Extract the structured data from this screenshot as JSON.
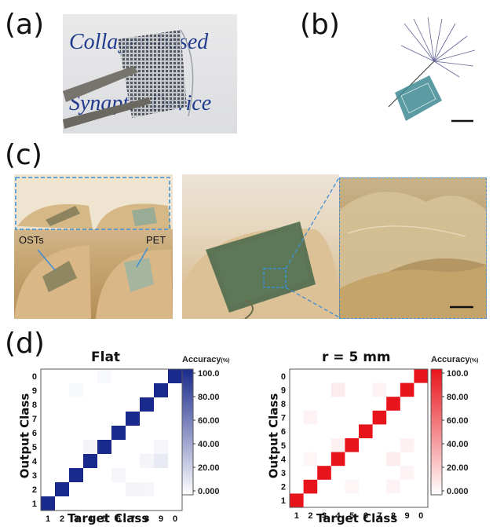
{
  "panels": {
    "a": {
      "letter": "(a)",
      "photo_text_line1": "Collagen-based",
      "photo_text_line2": "Synaptic Device"
    },
    "b": {
      "letter": "(b)"
    },
    "c": {
      "letter": "(c)",
      "label_osts": "OSTs",
      "label_pet": "PET"
    },
    "d": {
      "letter": "(d)"
    }
  },
  "chart_data": [
    {
      "type": "heatmap",
      "title": "Flat",
      "xlabel": "Target Class",
      "ylabel": "Output Class",
      "x_categories": [
        "1",
        "2",
        "3",
        "4",
        "5",
        "6",
        "7",
        "8",
        "9",
        "0"
      ],
      "y_categories": [
        "1",
        "2",
        "3",
        "4",
        "5",
        "6",
        "7",
        "8",
        "9",
        "0"
      ],
      "colorbar_label": "Accuracy",
      "colorbar_unit": "(%)",
      "colorbar_ticks": [
        "100.0",
        "80.00",
        "60.00",
        "40.00",
        "20.00",
        "0.000"
      ],
      "colorbar_range": [
        0,
        100
      ],
      "color": "#1a2a8c",
      "diagonal_accuracy": [
        100,
        100,
        100,
        100,
        100,
        100,
        100,
        100,
        100,
        100
      ],
      "off_diagonal_faint": [
        {
          "target": "5",
          "output": "0",
          "value": 3
        },
        {
          "target": "3",
          "output": "9",
          "value": 3
        },
        {
          "target": "4",
          "output": "5",
          "value": 5
        },
        {
          "target": "6",
          "output": "3",
          "value": 4
        },
        {
          "target": "8",
          "output": "4",
          "value": 5
        },
        {
          "target": "9",
          "output": "5",
          "value": 4
        },
        {
          "target": "9",
          "output": "4",
          "value": 10
        },
        {
          "target": "7",
          "output": "2",
          "value": 5
        },
        {
          "target": "8",
          "output": "2",
          "value": 4
        },
        {
          "target": "9",
          "output": "9",
          "value": 3
        }
      ]
    },
    {
      "type": "heatmap",
      "title": "r  =  5 mm",
      "xlabel": "Target Class",
      "ylabel": "Output Class",
      "x_categories": [
        "1",
        "2",
        "3",
        "4",
        "5",
        "6",
        "7",
        "8",
        "9",
        "0"
      ],
      "y_categories": [
        "1",
        "2",
        "3",
        "4",
        "5",
        "6",
        "7",
        "8",
        "9",
        "0"
      ],
      "colorbar_label": "Accuracy",
      "colorbar_unit": "(%)",
      "colorbar_ticks": [
        "100.0",
        "80.00",
        "60.00",
        "40.00",
        "20.00",
        "0.000"
      ],
      "colorbar_range": [
        0,
        100
      ],
      "color": "#e8141b",
      "diagonal_accuracy": [
        100,
        100,
        100,
        100,
        100,
        100,
        100,
        100,
        100,
        100
      ],
      "off_diagonal_faint": [
        {
          "target": "4",
          "output": "9",
          "value": 8
        },
        {
          "target": "7",
          "output": "9",
          "value": 5
        },
        {
          "target": "2",
          "output": "7",
          "value": 5
        },
        {
          "target": "4",
          "output": "5",
          "value": 6
        },
        {
          "target": "9",
          "output": "5",
          "value": 6
        },
        {
          "target": "8",
          "output": "4",
          "value": 8
        },
        {
          "target": "9",
          "output": "3",
          "value": 5
        },
        {
          "target": "5",
          "output": "2",
          "value": 4
        },
        {
          "target": "2",
          "output": "4",
          "value": 4
        },
        {
          "target": "8",
          "output": "2",
          "value": 5
        }
      ]
    }
  ]
}
